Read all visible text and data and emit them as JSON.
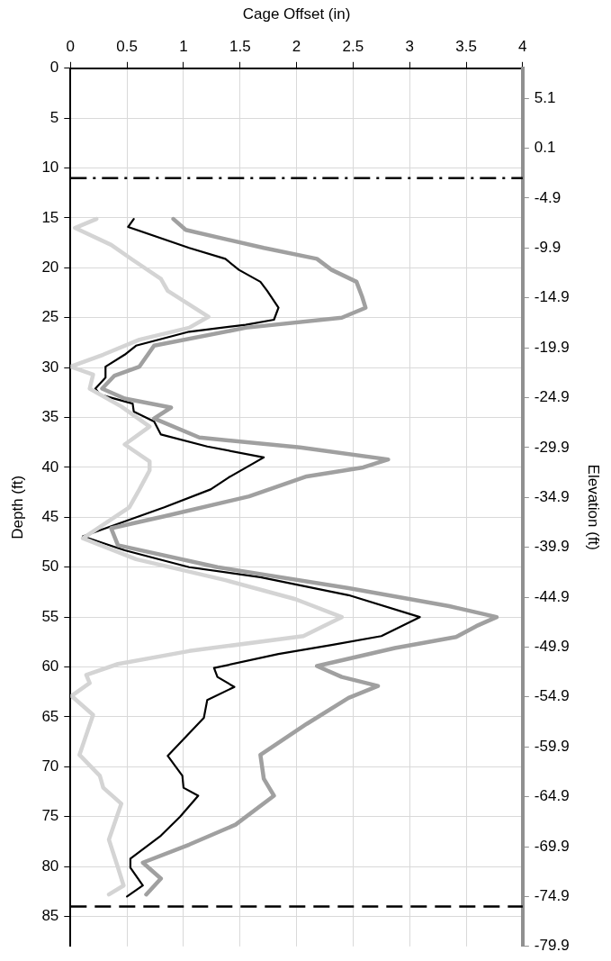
{
  "chart_data": {
    "type": "line",
    "xlabel": "Cage Offset (in)",
    "ylabel": "Depth (ft)",
    "y2label": "Elevation (ft)",
    "xlim": [
      0,
      4
    ],
    "xticks": [
      0,
      0.5,
      1,
      1.5,
      2,
      2.5,
      3,
      3.5,
      4
    ],
    "ylim": [
      88,
      0
    ],
    "yticks": [
      0,
      5,
      10,
      15,
      20,
      25,
      30,
      35,
      40,
      45,
      50,
      55,
      60,
      65,
      70,
      75,
      80,
      85
    ],
    "y2lim": [
      -79.9,
      8.1
    ],
    "y2ticks": [
      5.1,
      0.1,
      -4.9,
      -9.9,
      -14.9,
      -19.9,
      -24.9,
      -29.9,
      -34.9,
      -39.9,
      -44.9,
      -49.9,
      -54.9,
      -59.9,
      -64.9,
      -69.9,
      -74.9,
      -79.9
    ],
    "grid": true,
    "legend": false,
    "marker": "none",
    "ref_lines": [
      {
        "axis": "y",
        "value": 11,
        "color": "#000000",
        "line_style": "dashdot"
      },
      {
        "axis": "y",
        "value": 84,
        "color": "#000000",
        "line_style": "dashed"
      }
    ],
    "series": [
      {
        "color": "#d4d4d4",
        "x": [
          0.23,
          0.04,
          0.36,
          0.55,
          0.8,
          0.86,
          1.22,
          1.05,
          0.61,
          0.29,
          0,
          0.2,
          0.17,
          0.45,
          0.7,
          0.48,
          0.7,
          0.7,
          0.61,
          0.52,
          0.11,
          0.58,
          1.37,
          1.99,
          2.4,
          2.06,
          1.05,
          0.42,
          0.14,
          0.17,
          0.01,
          0.2,
          0.08,
          0.26,
          0.29,
          0.45,
          0.41,
          0.34,
          0.42,
          0.47,
          0.34
        ],
        "values": [
          15.1,
          16,
          17.7,
          19.2,
          21.1,
          22.3,
          24.9,
          26,
          27.2,
          28.7,
          29.9,
          30.7,
          32.1,
          33.9,
          35.9,
          37.7,
          39.4,
          40.3,
          42.2,
          44,
          47.1,
          49.2,
          51.3,
          53.2,
          55,
          56.9,
          58.4,
          59.7,
          60.8,
          61.6,
          62.9,
          64.8,
          68.8,
          70.9,
          72.1,
          73.7,
          75,
          77.3,
          80.1,
          81.9,
          82.8
        ]
      },
      {
        "color": "#a0a0a0",
        "x": [
          0.91,
          1.02,
          1.71,
          2.18,
          2.31,
          2.53,
          2.58,
          2.61,
          2.4,
          1.55,
          0.74,
          0.61,
          0.39,
          0.28,
          0.48,
          0.89,
          0.74,
          1.14,
          2.03,
          2.81,
          2.59,
          2.09,
          1.58,
          0.83,
          0.36,
          0.42,
          1.3,
          2.46,
          3.35,
          3.77,
          3.59,
          3.41,
          2.87,
          2.18,
          2.4,
          2.72,
          2.46,
          2.09,
          1.68,
          1.71,
          1.8,
          1.46,
          1.05,
          0.64,
          0.8,
          0.67
        ],
        "values": [
          15.1,
          16.2,
          18,
          19.1,
          20.2,
          21.4,
          22.9,
          24,
          25,
          26,
          27.8,
          29.9,
          30.8,
          32.1,
          33.1,
          34,
          35.1,
          37,
          38,
          39.2,
          40,
          40.9,
          42.9,
          44.9,
          46.1,
          47.8,
          50,
          52.1,
          53.9,
          55,
          55.9,
          57,
          58.1,
          59.9,
          61,
          61.9,
          63.1,
          65.7,
          68.8,
          71.2,
          72.9,
          75.8,
          77.8,
          79.6,
          81.2,
          82.8
        ]
      },
      {
        "color": "#000000",
        "x": [
          0.56,
          0.51,
          1.05,
          1.37,
          1.49,
          1.68,
          1.74,
          1.84,
          1.8,
          1.55,
          1.05,
          0.58,
          0.48,
          0.31,
          0.31,
          0.22,
          0.26,
          0.55,
          0.56,
          0.74,
          0.8,
          1.21,
          1.71,
          1.4,
          1.24,
          0.83,
          0.11,
          0.48,
          1.05,
          1.68,
          2.46,
          3.09,
          2.75,
          2.31,
          1.84,
          1.27,
          1.3,
          1.45,
          1.21,
          1.18,
          0.86,
          0.99,
          1,
          1.13,
          0.97,
          0.8,
          0.53,
          0.53,
          0.64,
          0.5
        ],
        "values": [
          15.1,
          15.9,
          18,
          19.1,
          20.2,
          21.4,
          22.3,
          24,
          25.2,
          25.7,
          26.4,
          27.8,
          28.7,
          29.9,
          31,
          32.1,
          32.7,
          33.6,
          34.4,
          35.4,
          36.7,
          37.9,
          39,
          41,
          42.2,
          44,
          46.9,
          48.3,
          50,
          51,
          52.8,
          55,
          56.9,
          57.8,
          58.7,
          60.1,
          61,
          62,
          63.3,
          65.1,
          68.9,
          70.9,
          72.1,
          72.9,
          75,
          76.9,
          79.2,
          80.1,
          81.9,
          83
        ]
      }
    ]
  }
}
